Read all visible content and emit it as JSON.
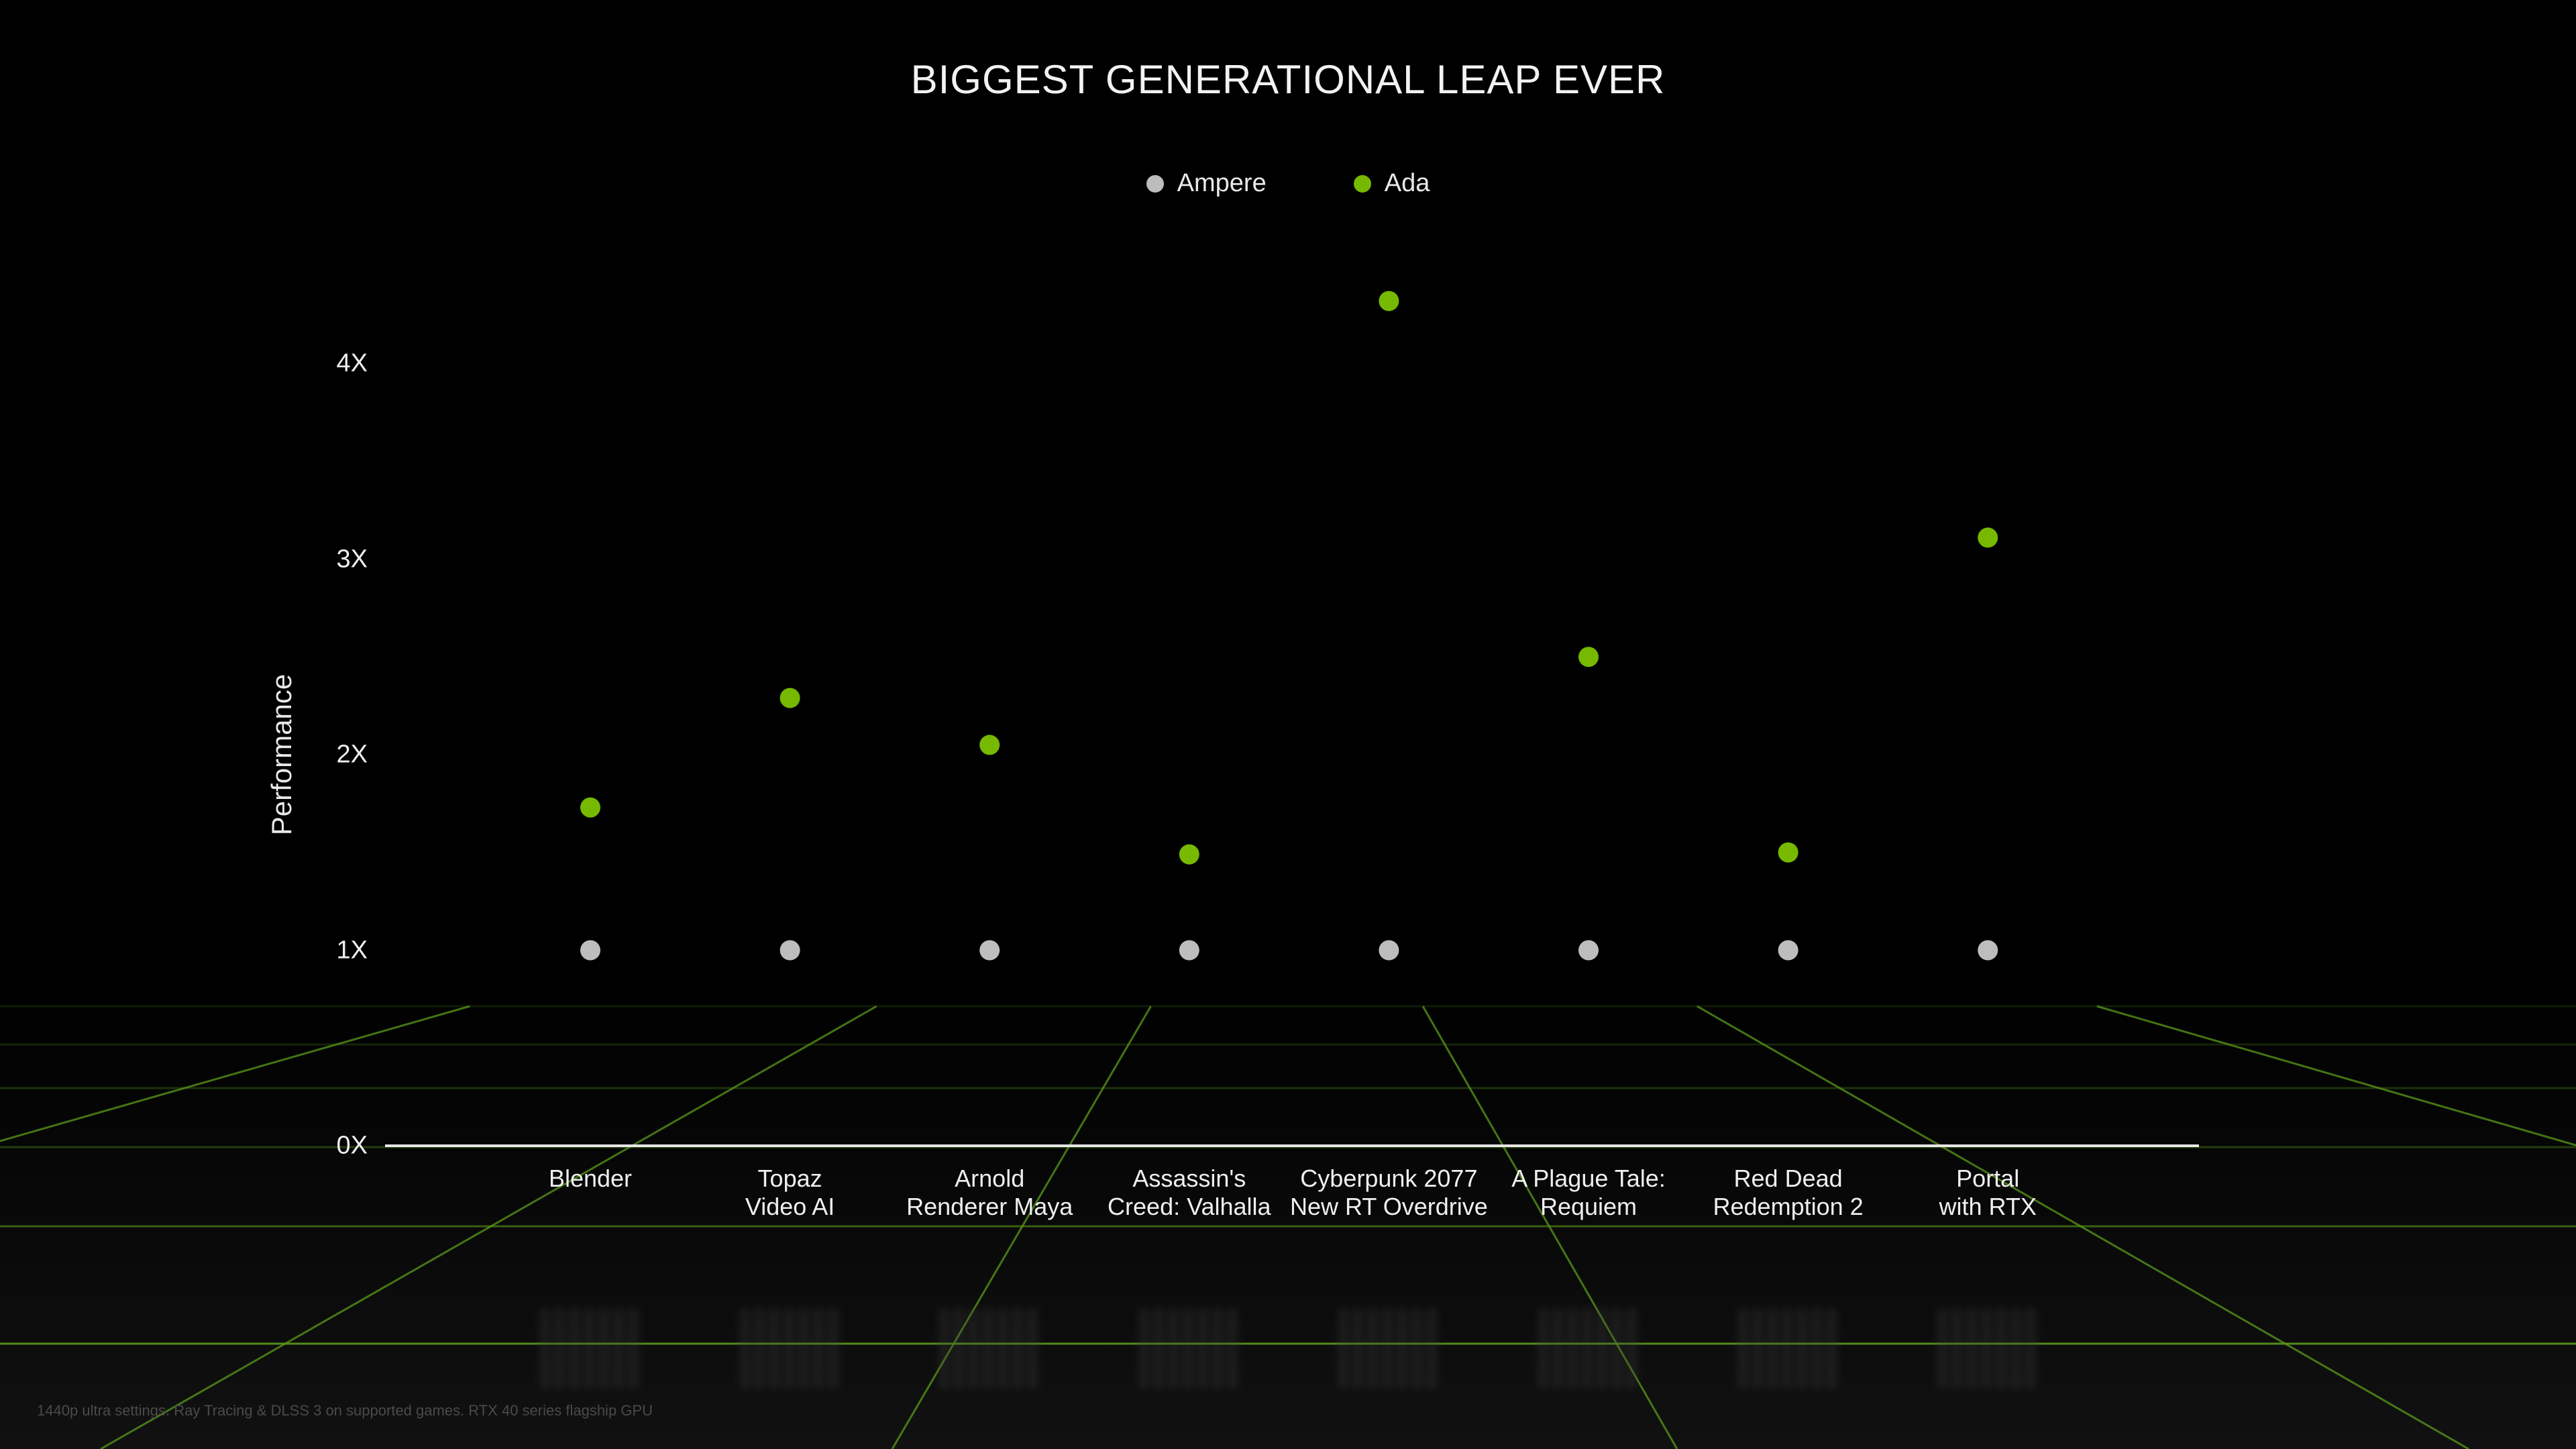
{
  "footnote": "1440p ultra settings. Ray Tracing & DLSS 3 on supported games. RTX 40 series flagship GPU",
  "colors": {
    "ampere": "#bdbdbd",
    "ada": "#76b900",
    "grid": "#5a9a1a",
    "background": "#000000"
  },
  "chart_data": {
    "type": "scatter",
    "title": "BIGGEST GENERATIONAL LEAP EVER",
    "xlabel": "",
    "ylabel": "Performance",
    "ylim": [
      0,
      4.4
    ],
    "yticks": [
      "0X",
      "1X",
      "2X",
      "3X",
      "4X"
    ],
    "ytick_values": [
      0,
      1,
      2,
      3,
      4
    ],
    "legend_position": "top-center",
    "grid": false,
    "categories": [
      "Blender",
      "Topaz\nVideo AI",
      "Arnold\nRenderer Maya",
      "Assassin's\nCreed: Valhalla",
      "Cyberpunk 2077\nNew RT Overdrive",
      "A Plague Tale:\nRequiem",
      "Red Dead\nRedemption 2",
      "Portal\nwith RTX"
    ],
    "series": [
      {
        "name": "Ampere",
        "values": [
          1,
          1,
          1,
          1,
          1,
          1,
          1,
          1
        ]
      },
      {
        "name": "Ada",
        "values": [
          1.73,
          2.29,
          2.05,
          1.49,
          4.32,
          2.5,
          1.5,
          3.11
        ]
      }
    ]
  }
}
